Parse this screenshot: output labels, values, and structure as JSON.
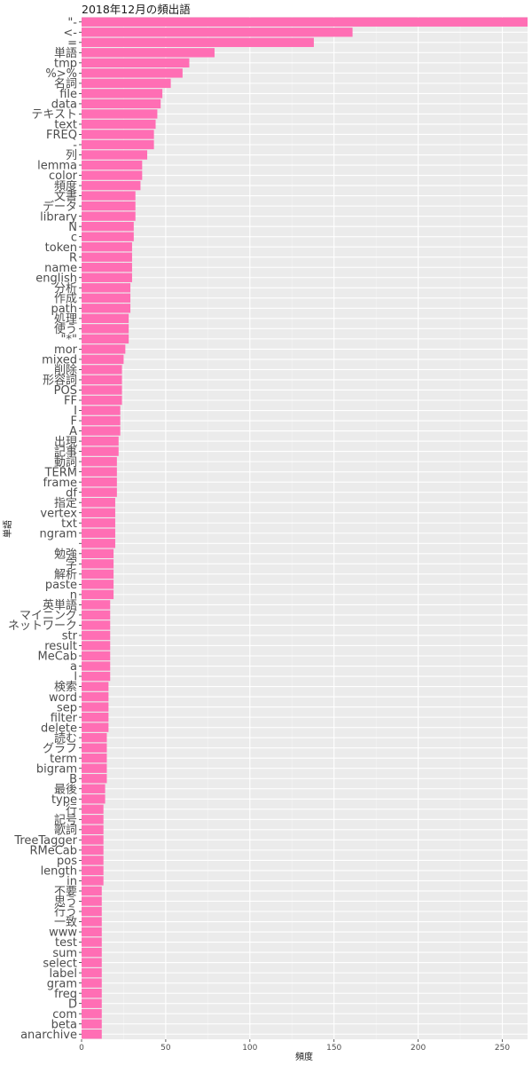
{
  "chart_data": {
    "type": "bar",
    "orientation": "horizontal",
    "title": "2018年12月の頻出語",
    "xlabel": "頻度",
    "ylabel": "単語",
    "xlim": [
      0,
      265
    ],
    "xticks": [
      0,
      50,
      100,
      150,
      200,
      250
    ],
    "bar_color": "#ff6eb4",
    "panel_color": "#ebebeb",
    "grid": true,
    "categories": [
      "\"-",
      "<-",
      "=",
      "単語",
      "tmp",
      "%>%",
      "名詞",
      "file",
      "data",
      "テキスト",
      "text",
      "FREQ",
      "-",
      "列",
      "lemma",
      "color",
      "頻度",
      "文書",
      "データ",
      "library",
      "N",
      "c",
      "token",
      "R",
      "name",
      "english",
      "分析",
      "作成",
      "path",
      "処理",
      "使う",
      "\"*\"",
      "mor",
      "mixed",
      "削除",
      "形容詞",
      "POS",
      "FF",
      "I",
      "F",
      "A",
      "出現",
      "記事",
      "動詞",
      "TERM",
      "frame",
      "df",
      "指定",
      "vertex",
      "txt",
      "ngram",
      "",
      "勉強",
      "字",
      "解析",
      "paste",
      "n",
      "英単語",
      "マイニング",
      "ネットワーク",
      "str",
      "result",
      "MeCab",
      "a",
      "l",
      "検索",
      "word",
      "sep",
      "filter",
      "delete",
      "読む",
      "グラフ",
      "term",
      "bigram",
      "B",
      "最後",
      "type",
      "行",
      "記号",
      "歌詞",
      "TreeTagger",
      "RMeCab",
      "pos",
      "length",
      "in",
      "不要",
      "思う",
      "行う",
      "一致",
      "www",
      "test",
      "sum",
      "select",
      "label",
      "gram",
      "freq",
      "D",
      "com",
      "beta",
      "anarchive"
    ],
    "values": [
      265,
      161,
      138,
      79,
      64,
      60,
      53,
      48,
      47,
      45,
      44,
      43,
      43,
      39,
      36,
      36,
      35,
      32,
      32,
      32,
      31,
      31,
      30,
      30,
      30,
      30,
      29,
      29,
      29,
      28,
      28,
      28,
      26,
      25,
      24,
      24,
      24,
      24,
      23,
      23,
      23,
      22,
      22,
      21,
      21,
      21,
      21,
      20,
      20,
      20,
      20,
      20,
      19,
      19,
      19,
      19,
      19,
      17,
      17,
      17,
      17,
      17,
      17,
      17,
      17,
      16,
      16,
      16,
      16,
      16,
      15,
      15,
      15,
      15,
      15,
      14,
      14,
      13,
      13,
      13,
      13,
      13,
      13,
      13,
      13,
      12,
      12,
      12,
      12,
      12,
      12,
      12,
      12,
      12,
      12,
      12,
      12,
      12,
      12,
      12
    ]
  }
}
